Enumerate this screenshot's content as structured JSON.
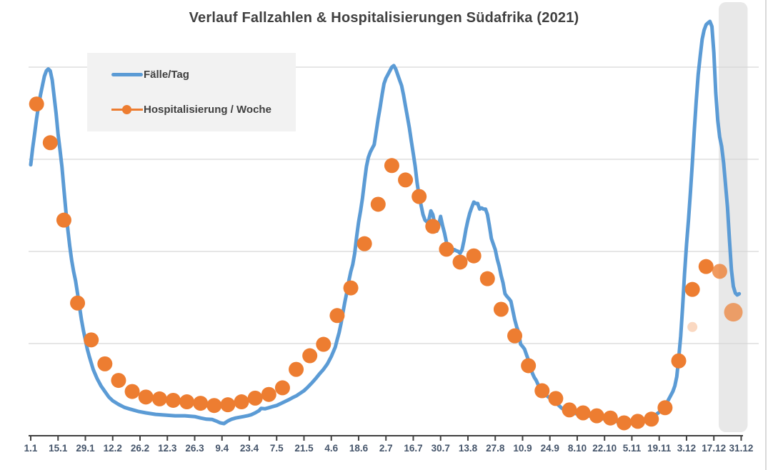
{
  "chart_data": {
    "type": "line",
    "title": "Verlauf Fallzahlen & Hospitalisierungen Südafrika (2021)",
    "x_unit": "day_of_year_2021",
    "x_range": [
      1,
      365
    ],
    "x_tick_interval_days": 14,
    "x_tick_labels": [
      "1.1",
      "15.1",
      "29.1",
      "12.2",
      "26.2",
      "12.3",
      "26.3",
      "9.4",
      "23.4",
      "7.5",
      "21.5",
      "4.6",
      "18.6",
      "2.7",
      "16.7",
      "30.7",
      "13.8",
      "27.8",
      "10.9",
      "24.9",
      "8.10",
      "22.10",
      "5.11",
      "19.11",
      "3.12",
      "17.12",
      "31.12"
    ],
    "y_axis": {
      "labels_visible": false,
      "relative_units": true,
      "ylim": [
        0,
        116
      ],
      "gridline_values": [
        25,
        50,
        75,
        100
      ],
      "grid_on": true
    },
    "legend": {
      "position": "top-left",
      "background": "#F2F2F2"
    },
    "highlight_band": {
      "from_label": "17.12",
      "to_label": "31.12",
      "from_day": 353.5,
      "to_day": 365,
      "color": "#E8E8E8"
    },
    "colors": {
      "cases": "#5B9BD5",
      "hospitalization": "#ED7D31",
      "grid": "#D6D6D6",
      "axis": "#404040",
      "tick_label": "#44546A",
      "title": "#404040"
    },
    "series": [
      {
        "name": "Fälle/Tag",
        "type": "line",
        "color": "#5B9BD5",
        "stroke_width": 5,
        "points": [
          [
            1,
            73.5
          ],
          [
            2,
            78
          ],
          [
            3,
            82
          ],
          [
            4,
            86
          ],
          [
            5,
            89.5
          ],
          [
            6,
            92.5
          ],
          [
            7,
            95
          ],
          [
            8,
            97.5
          ],
          [
            9,
            99
          ],
          [
            10,
            99.5
          ],
          [
            11,
            99
          ],
          [
            12,
            96.5
          ],
          [
            13,
            92
          ],
          [
            14,
            87.5
          ],
          [
            15,
            82
          ],
          [
            16,
            77.5
          ],
          [
            17,
            73
          ],
          [
            18,
            67
          ],
          [
            19,
            61
          ],
          [
            20,
            56
          ],
          [
            21,
            51.5
          ],
          [
            22,
            47.5
          ],
          [
            23,
            44.5
          ],
          [
            24,
            42
          ],
          [
            25,
            38.5
          ],
          [
            26,
            35
          ],
          [
            27,
            31.5
          ],
          [
            28,
            28.5
          ],
          [
            29,
            26
          ],
          [
            30,
            23.5
          ],
          [
            31,
            21.5
          ],
          [
            33,
            18
          ],
          [
            35,
            15.5
          ],
          [
            37,
            13.5
          ],
          [
            39,
            12
          ],
          [
            41,
            10.5
          ],
          [
            43,
            9.5
          ],
          [
            46,
            8.5
          ],
          [
            49,
            7.7
          ],
          [
            52,
            7.2
          ],
          [
            56,
            6.6
          ],
          [
            60,
            6.2
          ],
          [
            65,
            5.8
          ],
          [
            70,
            5.6
          ],
          [
            75,
            5.4
          ],
          [
            80,
            5.4
          ],
          [
            85,
            5.2
          ],
          [
            88,
            4.8
          ],
          [
            91,
            4.5
          ],
          [
            94,
            4.4
          ],
          [
            96,
            4
          ],
          [
            98,
            3.5
          ],
          [
            100,
            3.3
          ],
          [
            102,
            4
          ],
          [
            104,
            4.5
          ],
          [
            106,
            4.8
          ],
          [
            108,
            5
          ],
          [
            110,
            5.2
          ],
          [
            112,
            5.4
          ],
          [
            114,
            5.7
          ],
          [
            116,
            6.2
          ],
          [
            118,
            6.8
          ],
          [
            119,
            7.4
          ],
          [
            121,
            7.3
          ],
          [
            123,
            7.6
          ],
          [
            125,
            7.9
          ],
          [
            127,
            8.2
          ],
          [
            129,
            8.7
          ],
          [
            131,
            9.2
          ],
          [
            133,
            9.7
          ],
          [
            135,
            10.3
          ],
          [
            137,
            10.8
          ],
          [
            139,
            11.5
          ],
          [
            141,
            12.2
          ],
          [
            143,
            13.2
          ],
          [
            145,
            14.3
          ],
          [
            147,
            15.5
          ],
          [
            149,
            16.8
          ],
          [
            151,
            18
          ],
          [
            153,
            19.5
          ],
          [
            155,
            21.5
          ],
          [
            157,
            24
          ],
          [
            158,
            26
          ],
          [
            159,
            28
          ],
          [
            160,
            30.5
          ],
          [
            161,
            33.5
          ],
          [
            162,
            36.5
          ],
          [
            163,
            39
          ],
          [
            164,
            42
          ],
          [
            165,
            44.5
          ],
          [
            166,
            46.5
          ],
          [
            167,
            49.5
          ],
          [
            168,
            54
          ],
          [
            169,
            58
          ],
          [
            170,
            61
          ],
          [
            171,
            64.5
          ],
          [
            172,
            69
          ],
          [
            173,
            73
          ],
          [
            174,
            75.5
          ],
          [
            175,
            77
          ],
          [
            176,
            78
          ],
          [
            177,
            79
          ],
          [
            178,
            82.5
          ],
          [
            179,
            86
          ],
          [
            180,
            89
          ],
          [
            181,
            92.5
          ],
          [
            182,
            95.5
          ],
          [
            183,
            97
          ],
          [
            184,
            98
          ],
          [
            185,
            99
          ],
          [
            186,
            100
          ],
          [
            187,
            100.4
          ],
          [
            188,
            99.5
          ],
          [
            189,
            98
          ],
          [
            190,
            96.5
          ],
          [
            191,
            95
          ],
          [
            192,
            92.5
          ],
          [
            193,
            89.5
          ],
          [
            194,
            86.5
          ],
          [
            195,
            83.5
          ],
          [
            196,
            80
          ],
          [
            197,
            76.5
          ],
          [
            198,
            73
          ],
          [
            199,
            68.5
          ],
          [
            200,
            65
          ],
          [
            201,
            62.5
          ],
          [
            202,
            60
          ],
          [
            203,
            58.5
          ],
          [
            204,
            58
          ],
          [
            205,
            58.5
          ],
          [
            206,
            61
          ],
          [
            207,
            60
          ],
          [
            208,
            57.5
          ],
          [
            209,
            55.5
          ],
          [
            210,
            57
          ],
          [
            211,
            59.5
          ],
          [
            212,
            57
          ],
          [
            213,
            55
          ],
          [
            214,
            52.5
          ],
          [
            215,
            51
          ],
          [
            216,
            50.3
          ],
          [
            217,
            50
          ],
          [
            218,
            50.5
          ],
          [
            219,
            50.2
          ],
          [
            220,
            50
          ],
          [
            221,
            49.5
          ],
          [
            222,
            50.5
          ],
          [
            223,
            53
          ],
          [
            224,
            56
          ],
          [
            225,
            58.5
          ],
          [
            226,
            60.5
          ],
          [
            227,
            62
          ],
          [
            228,
            63.4
          ],
          [
            229,
            63
          ],
          [
            230,
            63
          ],
          [
            231,
            61.5
          ],
          [
            232,
            61.8
          ],
          [
            233,
            61.5
          ],
          [
            234,
            61.5
          ],
          [
            235,
            60
          ],
          [
            236,
            57
          ],
          [
            237,
            53.5
          ],
          [
            238,
            52
          ],
          [
            239,
            50.5
          ],
          [
            240,
            48
          ],
          [
            241,
            46
          ],
          [
            242,
            43.5
          ],
          [
            243,
            41.5
          ],
          [
            244,
            38.5
          ],
          [
            245,
            37.8
          ],
          [
            246,
            37.2
          ],
          [
            247,
            36.5
          ],
          [
            248,
            34
          ],
          [
            249,
            31.5
          ],
          [
            250,
            29.5
          ],
          [
            251,
            28
          ],
          [
            252,
            24.8
          ],
          [
            253,
            24.2
          ],
          [
            254,
            23.5
          ],
          [
            255,
            22
          ],
          [
            256,
            20.5
          ],
          [
            257,
            19
          ],
          [
            258,
            17
          ],
          [
            259,
            15.8
          ],
          [
            260,
            15
          ],
          [
            261,
            13.8
          ],
          [
            263,
            12.2
          ],
          [
            265,
            11
          ],
          [
            267,
            10.2
          ],
          [
            269,
            9.3
          ],
          [
            271,
            8.5
          ],
          [
            273,
            7.5
          ],
          [
            275,
            6.8
          ],
          [
            277,
            6.4
          ],
          [
            279,
            6.2
          ],
          [
            281,
            5.9
          ],
          [
            283,
            5.5
          ],
          [
            286,
            5.4
          ],
          [
            289,
            5.3
          ],
          [
            291,
            4.9
          ],
          [
            294,
            4.6
          ],
          [
            296,
            4.5
          ],
          [
            298,
            4.3
          ],
          [
            301,
            3.9
          ],
          [
            303,
            3.6
          ],
          [
            306,
            3.5
          ],
          [
            308,
            3.5
          ],
          [
            310,
            3.7
          ],
          [
            313,
            3.9
          ],
          [
            315,
            4.1
          ],
          [
            318,
            4.5
          ],
          [
            320,
            5.2
          ],
          [
            323,
            6.4
          ],
          [
            325,
            7.4
          ],
          [
            327,
            9
          ],
          [
            329,
            11
          ],
          [
            330,
            12
          ],
          [
            331,
            13.5
          ],
          [
            332,
            16
          ],
          [
            333,
            21
          ],
          [
            334,
            27
          ],
          [
            335,
            35
          ],
          [
            336,
            44
          ],
          [
            337,
            52
          ],
          [
            338,
            58.5
          ],
          [
            339,
            66
          ],
          [
            340,
            74
          ],
          [
            341,
            83
          ],
          [
            342,
            91
          ],
          [
            343,
            98
          ],
          [
            344,
            103
          ],
          [
            345,
            107.5
          ],
          [
            346,
            110
          ],
          [
            347,
            111.5
          ],
          [
            348,
            112
          ],
          [
            349,
            112.4
          ],
          [
            350,
            111
          ],
          [
            351,
            104
          ],
          [
            352,
            93
          ],
          [
            353,
            85.5
          ],
          [
            354,
            81
          ],
          [
            355,
            78.5
          ],
          [
            356,
            74
          ],
          [
            357,
            68
          ],
          [
            358,
            62
          ],
          [
            359,
            53
          ],
          [
            360,
            45
          ],
          [
            361,
            40.5
          ],
          [
            362,
            38.7
          ],
          [
            363,
            38.2
          ],
          [
            364,
            38.5
          ]
        ]
      },
      {
        "name": "Hospitalisierung / Woche",
        "type": "scatter",
        "color": "#ED7D31",
        "marker_radius": 10.5,
        "interval_days": 7,
        "points": [
          [
            4,
            90
          ],
          [
            11,
            79.5
          ],
          [
            18,
            58.5
          ],
          [
            25,
            36
          ],
          [
            32,
            26
          ],
          [
            39,
            19.5
          ],
          [
            46,
            15
          ],
          [
            53,
            12
          ],
          [
            60,
            10.5
          ],
          [
            67,
            10
          ],
          [
            74,
            9.6
          ],
          [
            81,
            9.2
          ],
          [
            88,
            8.8
          ],
          [
            95,
            8.2
          ],
          [
            102,
            8.4
          ],
          [
            109,
            9.2
          ],
          [
            116,
            10.2
          ],
          [
            123,
            11.2
          ],
          [
            130,
            13
          ],
          [
            137,
            18
          ],
          [
            144,
            21.7
          ],
          [
            151,
            24.8
          ],
          [
            158,
            32.6
          ],
          [
            165,
            40.1
          ],
          [
            172,
            52.1
          ],
          [
            179,
            62.8
          ],
          [
            186,
            73.3
          ],
          [
            193,
            69.4
          ],
          [
            200,
            64.9
          ],
          [
            207,
            56.8
          ],
          [
            214,
            50.6
          ],
          [
            221,
            47.1
          ],
          [
            228,
            48.8
          ],
          [
            235,
            42.6
          ],
          [
            242,
            34.3
          ],
          [
            249,
            27.1
          ],
          [
            256,
            19
          ],
          [
            263,
            12.2
          ],
          [
            270,
            10.1
          ],
          [
            277,
            7
          ],
          [
            284,
            6.2
          ],
          [
            291,
            5.4
          ],
          [
            298,
            4.8
          ],
          [
            305,
            3.5
          ],
          [
            312,
            3.9
          ],
          [
            319,
            4.5
          ],
          [
            326,
            7.6
          ],
          [
            333,
            20.3
          ],
          [
            340,
            39.7
          ],
          [
            347,
            45.9
          ]
        ],
        "muted_points": [
          {
            "day": 354,
            "value": 44.6,
            "opacity": 0.78
          },
          {
            "day": 361,
            "value": 33.5,
            "opacity": 0.7,
            "radius": 13
          }
        ],
        "ghost_point": {
          "day": 340,
          "value": 29.5,
          "opacity": 0.3,
          "radius": 7
        }
      }
    ]
  }
}
